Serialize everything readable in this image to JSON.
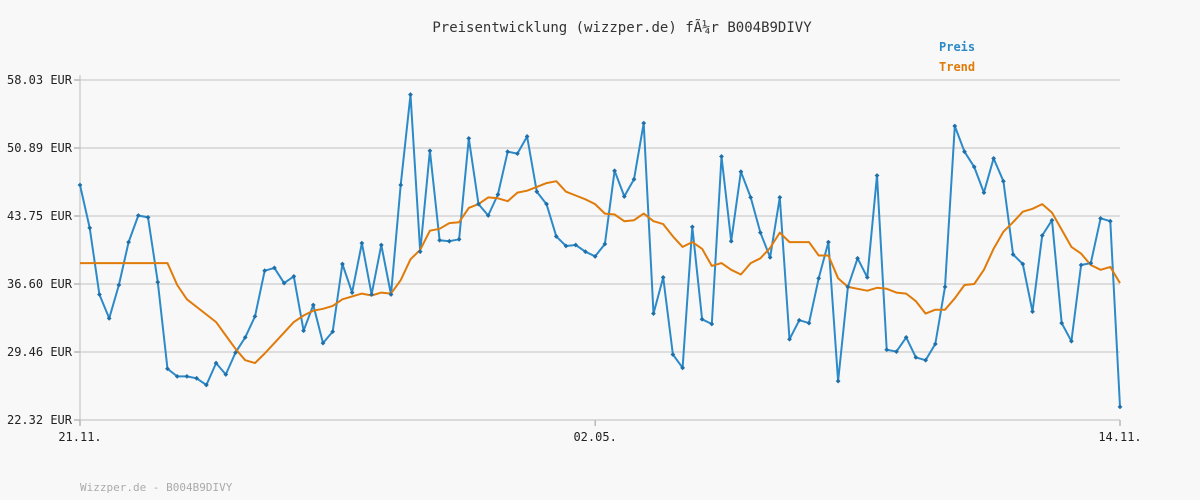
{
  "chart_data": {
    "type": "line",
    "title": "Preisentwicklung (wizzper.de) fÃ¼r B004B9DIVY",
    "footer": "Wizzper.de - B004B9DIVY",
    "ylim": [
      22.32,
      58.03
    ],
    "y_ticks": [
      "58.03 EUR",
      "50.89 EUR",
      "43.75 EUR",
      "36.60 EUR",
      "29.46 EUR",
      "22.32 EUR"
    ],
    "x_ticks": [
      {
        "label": "21.11.",
        "index": 0
      },
      {
        "label": "02.05.",
        "index": 53
      },
      {
        "label": "14.11.",
        "index": 107
      }
    ],
    "grid": true,
    "legend_position": "top-right",
    "series": [
      {
        "name": "Preis",
        "color": "#2d8ac8",
        "values": [
          47.0,
          42.5,
          35.5,
          33.0,
          36.5,
          41.0,
          43.8,
          43.6,
          36.8,
          27.7,
          26.9,
          26.9,
          26.7,
          26.0,
          28.3,
          27.1,
          29.4,
          31.0,
          33.2,
          38.0,
          38.3,
          36.7,
          37.4,
          31.7,
          34.4,
          30.4,
          31.6,
          38.7,
          35.7,
          40.9,
          35.5,
          40.7,
          35.5,
          47.0,
          56.5,
          40.0,
          50.6,
          41.2,
          41.1,
          41.3,
          51.9,
          45.0,
          43.8,
          46.0,
          50.5,
          50.3,
          52.1,
          46.3,
          45.0,
          41.6,
          40.6,
          40.7,
          40.0,
          39.5,
          40.8,
          48.5,
          45.8,
          47.6,
          53.5,
          33.5,
          37.3,
          29.2,
          27.8,
          42.6,
          32.9,
          32.4,
          50.0,
          41.1,
          48.4,
          45.7,
          42.0,
          39.4,
          45.7,
          30.8,
          32.8,
          32.5,
          37.2,
          41.0,
          26.4,
          36.3,
          39.3,
          37.3,
          48.0,
          29.7,
          29.5,
          31.0,
          28.9,
          28.6,
          30.3,
          36.3,
          53.2,
          50.5,
          48.9,
          46.2,
          49.8,
          47.4,
          39.7,
          38.7,
          33.7,
          41.7,
          43.3,
          32.5,
          30.6,
          38.6,
          38.8,
          43.5,
          43.2,
          23.7
        ]
      },
      {
        "name": "Trend",
        "color": "#e07b0a",
        "values": [
          38.8,
          38.8,
          38.8,
          38.8,
          38.8,
          38.8,
          38.8,
          38.8,
          38.8,
          38.8,
          36.5,
          35.0,
          34.2,
          33.4,
          32.6,
          31.2,
          29.8,
          28.6,
          28.3,
          29.3,
          30.4,
          31.5,
          32.6,
          33.3,
          33.8,
          34.0,
          34.3,
          35.0,
          35.3,
          35.6,
          35.4,
          35.7,
          35.6,
          37.0,
          39.2,
          40.2,
          42.2,
          42.4,
          43.0,
          43.1,
          44.6,
          45.0,
          45.7,
          45.6,
          45.3,
          46.2,
          46.4,
          46.8,
          47.2,
          47.4,
          46.3,
          45.9,
          45.5,
          45.0,
          44.0,
          43.9,
          43.2,
          43.3,
          44.0,
          43.2,
          42.9,
          41.6,
          40.5,
          41.0,
          40.3,
          38.5,
          38.8,
          38.1,
          37.6,
          38.8,
          39.3,
          40.4,
          42.0,
          41.0,
          41.0,
          41.0,
          39.6,
          39.6,
          37.2,
          36.3,
          36.1,
          35.9,
          36.2,
          36.1,
          35.7,
          35.6,
          34.8,
          33.5,
          33.9,
          33.9,
          35.1,
          36.5,
          36.6,
          38.1,
          40.3,
          42.1,
          43.1,
          44.2,
          44.5,
          45.0,
          44.1,
          42.3,
          40.5,
          39.8,
          38.6,
          38.1,
          38.4,
          36.7
        ]
      }
    ]
  }
}
